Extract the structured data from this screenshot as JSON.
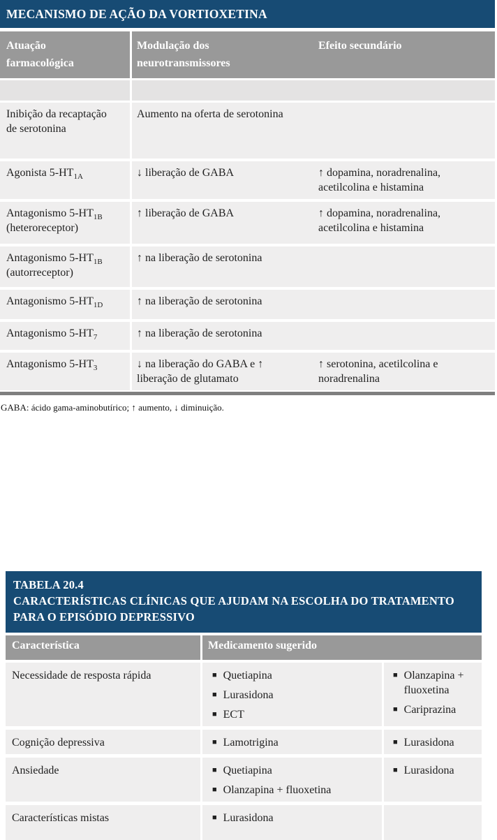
{
  "colors": {
    "navy": "#174b74",
    "header_gray": "#999999",
    "row_bg": "#efeeee",
    "spacer_bg": "#e4e3e3",
    "bottom_border": "#7f7f7f"
  },
  "table1": {
    "title": "MECANISMO DE AÇÃO DA VORTIOXETINA",
    "columns": [
      "Atuação farmacológica",
      "Modulação dos neurotransmissores",
      "Efeito secundário"
    ],
    "rows": [
      {
        "receptor": {
          "text": "Inibição da recaptação de serotonina",
          "sub": "",
          "post": ""
        },
        "modulation": "Aumento na oferta de serotonina",
        "effect": ""
      },
      {
        "receptor": {
          "text": "Agonista 5-HT",
          "sub": "1A",
          "post": ""
        },
        "modulation": "↓ liberação de GABA",
        "effect": "↑ dopamina, noradrenalina, acetilcolina e histamina"
      },
      {
        "receptor": {
          "text": "Antagonismo 5-HT",
          "sub": "1B",
          "post": " (heteroreceptor)"
        },
        "modulation": "↑ liberação de GABA",
        "effect": "↑ dopamina, noradrenalina, acetilcolina e histamina"
      },
      {
        "receptor": {
          "text": "Antagonismo 5-HT",
          "sub": "1B",
          "post": " (autorreceptor)"
        },
        "modulation": "↑ na liberação de serotonina",
        "effect": ""
      },
      {
        "receptor": {
          "text": "Antagonismo 5-HT",
          "sub": "1D",
          "post": ""
        },
        "modulation": "↑ na liberação de serotonina",
        "effect": ""
      },
      {
        "receptor": {
          "text": "Antagonismo 5-HT",
          "sub": "7",
          "post": ""
        },
        "modulation": "↑ na liberação de serotonina",
        "effect": ""
      },
      {
        "receptor": {
          "text": "Antagonismo 5-HT",
          "sub": "3",
          "post": ""
        },
        "modulation": "↓ na liberação do GABA e ↑ liberação de glutamato",
        "effect": "↑ serotonina, acetilcolina e noradrenalina"
      }
    ],
    "footnote": "GABA: ácido gama-aminobutírico; ↑ aumento, ↓ diminuição."
  },
  "table2": {
    "label": "TABELA 20.4",
    "title": "CARACTERÍSTICAS CLÍNICAS QUE AJUDAM NA ESCOLHA DO TRATAMENTO PARA O EPISÓDIO DEPRESSIVO",
    "columns": [
      "Característica",
      "Medicamento sugerido"
    ],
    "bullet_glyph": "■",
    "rows": [
      {
        "characteristic": "Necessidade de resposta rápida",
        "meds_primary": [
          "Quetiapina",
          "Lurasidona",
          "ECT"
        ],
        "meds_secondary": [
          "Olanzapina + fluoxetina",
          "Cariprazina"
        ]
      },
      {
        "characteristic": "Cognição depressiva",
        "meds_primary": [
          "Lamotrigina"
        ],
        "meds_secondary": [
          "Lurasidona"
        ]
      },
      {
        "characteristic": "Ansiedade",
        "meds_primary": [
          "Quetiapina",
          "Olanzapina + fluoxetina"
        ],
        "meds_secondary": [
          "Lurasidona"
        ]
      },
      {
        "characteristic": "Características mistas",
        "meds_primary": [
          "Lurasidona"
        ],
        "meds_secondary": []
      }
    ]
  }
}
